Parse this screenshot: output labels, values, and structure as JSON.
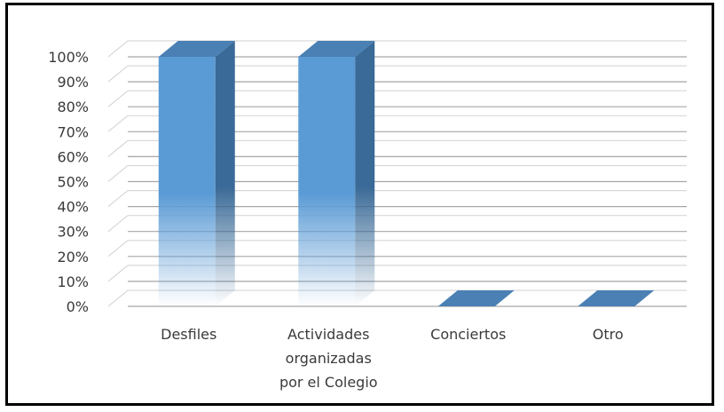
{
  "chart_data": {
    "type": "bar",
    "categories": [
      "Desfiles",
      "Actividades organizadas por el Colegio",
      "Conciertos",
      "Otro"
    ],
    "category_lines": [
      [
        "Desfiles"
      ],
      [
        "Actividades",
        "organizadas",
        "por el Colegio"
      ],
      [
        "Conciertos"
      ],
      [
        "Otro"
      ]
    ],
    "values": [
      100,
      100,
      0,
      0
    ],
    "ylim": [
      0,
      100
    ],
    "yticks": [
      "0%",
      "10%",
      "20%",
      "30%",
      "40%",
      "50%",
      "60%",
      "70%",
      "80%",
      "90%",
      "100%"
    ],
    "grid": true,
    "legend": "none",
    "bar_color": "#5b9bd5",
    "bar_side_color": "#3a6a97",
    "bar_top_color": "#4a80b4"
  }
}
